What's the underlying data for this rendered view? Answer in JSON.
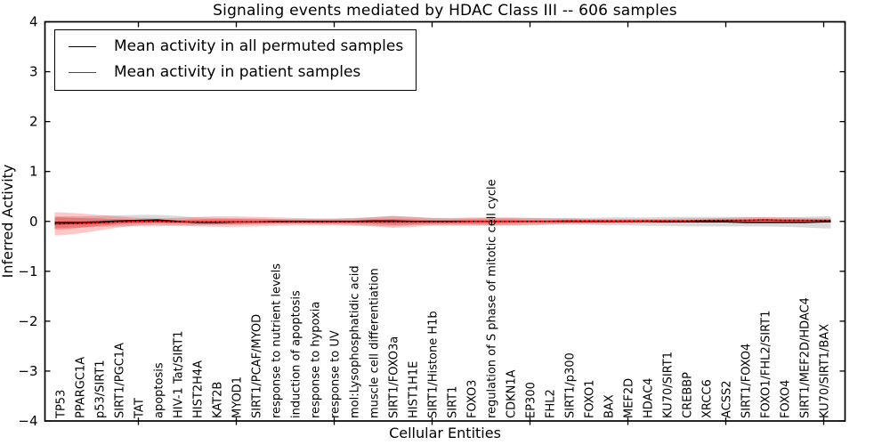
{
  "title": "Signaling events mediated by HDAC Class III -- 606 samples",
  "legend": {
    "items": [
      {
        "label": "Mean activity in all permuted samples",
        "color": "#000000"
      },
      {
        "label": "Mean activity in patient samples",
        "color": "#ff0000"
      }
    ]
  },
  "chart_data": {
    "type": "line",
    "title": "Signaling events mediated by HDAC Class III -- 606 samples",
    "xlabel": "Cellular Entities",
    "ylabel": "Inferred Activity",
    "ylim": [
      -4,
      4
    ],
    "yticks": [
      4,
      3,
      2,
      1,
      0,
      -1,
      -2,
      -3,
      -4
    ],
    "grid": false,
    "legend_position": "upper left",
    "x_marked_tick_indices": [
      4,
      9,
      14,
      19,
      24,
      29,
      34,
      39
    ],
    "categories": [
      "TP53",
      "PPARGC1A",
      "p53/SIRT1",
      "SIRT1/PGC1A",
      "TAT",
      "apoptosis",
      "HIV-1 Tat/SIRT1",
      "HIST2H4A",
      "KAT2B",
      "MYOD1",
      "SIRT1/PCAF/MYOD",
      "response to nutrient levels",
      "induction of apoptosis",
      "response to hypoxia",
      "response to UV",
      "mol:Lysophosphatidic acid",
      "muscle cell differentiation",
      "SIRT1/FOXO3a",
      "HIST1H1E",
      "SIRT1/Histone H1b",
      "SIRT1",
      "FOXO3",
      "regulation of S phase of mitotic cell cycle",
      "CDKN1A",
      "EP300",
      "FHL2",
      "SIRT1/p300",
      "FOXO1",
      "BAX",
      "MEF2D",
      "HDAC4",
      "KU70/SIRT1",
      "CREBBP",
      "XRCC6",
      "ACSS2",
      "SIRT1/FOXO4",
      "FOXO1/FHL2/SIRT1",
      "FOXO4",
      "SIRT1/MEF2D/HDAC4",
      "KU70/SIRT1/BAX"
    ],
    "series": [
      {
        "name": "Mean activity in all permuted samples",
        "color": "#000000",
        "style": "solid",
        "values": [
          -0.02,
          -0.02,
          -0.01,
          0.01,
          0.02,
          0.03,
          0.0,
          -0.02,
          -0.02,
          -0.01,
          -0.01,
          0,
          0,
          0,
          0,
          0,
          0.01,
          0.01,
          0,
          0,
          0,
          0,
          0,
          0,
          0,
          0,
          0,
          0,
          0,
          0,
          0,
          -0.01,
          -0.01,
          -0.01,
          -0.01,
          -0.02,
          -0.02,
          -0.02,
          -0.02,
          -0.01
        ]
      },
      {
        "name": "Mean activity in patient samples",
        "color": "#ff0000",
        "style": "solid-with-black-dots",
        "values": [
          -0.05,
          -0.04,
          -0.03,
          -0.01,
          0,
          0,
          -0.01,
          -0.01,
          -0.01,
          -0.01,
          -0.01,
          -0.01,
          -0.01,
          -0.01,
          -0.01,
          -0.01,
          -0.01,
          -0.01,
          -0.01,
          -0.01,
          -0.01,
          0,
          0,
          0,
          0,
          0,
          0.01,
          0.01,
          0.01,
          0.01,
          0.01,
          0.01,
          0.01,
          0.02,
          0.02,
          0.02,
          0.03,
          0.02,
          0.02,
          0.02
        ]
      }
    ],
    "bands": [
      {
        "name": "permuted-samples-range",
        "color": "#000000",
        "alpha": 0.15,
        "upper": [
          0.1,
          0.1,
          0.11,
          0.12,
          0.13,
          0.13,
          0.11,
          0.08,
          0.07,
          0.06,
          0.06,
          0.05,
          0.05,
          0.05,
          0.05,
          0.06,
          0.09,
          0.11,
          0.09,
          0.07,
          0.06,
          0.06,
          0.07,
          0.07,
          0.07,
          0.07,
          0.07,
          0.07,
          0.08,
          0.08,
          0.08,
          0.09,
          0.09,
          0.09,
          0.09,
          0.09,
          0.08,
          0.08,
          0.09,
          0.1
        ],
        "lower": [
          -0.13,
          -0.12,
          -0.11,
          -0.1,
          -0.1,
          -0.1,
          -0.09,
          -0.08,
          -0.07,
          -0.06,
          -0.06,
          -0.05,
          -0.05,
          -0.05,
          -0.06,
          -0.07,
          -0.09,
          -0.1,
          -0.08,
          -0.07,
          -0.07,
          -0.07,
          -0.08,
          -0.08,
          -0.08,
          -0.07,
          -0.07,
          -0.07,
          -0.08,
          -0.08,
          -0.09,
          -0.09,
          -0.1,
          -0.1,
          -0.1,
          -0.1,
          -0.1,
          -0.11,
          -0.12,
          -0.14
        ]
      },
      {
        "name": "patient-samples-range-outer",
        "color": "#ff0000",
        "alpha": 0.22,
        "upper": [
          0.18,
          0.16,
          0.13,
          0.1,
          0.07,
          0.06,
          0.07,
          0.09,
          0.1,
          0.1,
          0.09,
          0.08,
          0.07,
          0.06,
          0.06,
          0.07,
          0.08,
          0.11,
          0.09,
          0.07,
          0.07,
          0.08,
          0.08,
          0.08,
          0.07,
          0.06,
          0.06,
          0.05,
          0.05,
          0.05,
          0.05,
          0.05,
          0.06,
          0.06,
          0.07,
          0.08,
          0.09,
          0.08,
          0.07,
          0.06
        ],
        "lower": [
          -0.28,
          -0.24,
          -0.18,
          -0.12,
          -0.08,
          -0.07,
          -0.08,
          -0.1,
          -0.11,
          -0.11,
          -0.1,
          -0.09,
          -0.08,
          -0.08,
          -0.08,
          -0.09,
          -0.1,
          -0.13,
          -0.11,
          -0.09,
          -0.09,
          -0.09,
          -0.09,
          -0.08,
          -0.07,
          -0.06,
          -0.05,
          -0.05,
          -0.04,
          -0.04,
          -0.03,
          -0.03,
          -0.02,
          -0.02,
          -0.02,
          -0.02,
          -0.02,
          -0.02,
          -0.02,
          -0.02
        ]
      },
      {
        "name": "patient-samples-range-inner",
        "color": "#ff0000",
        "alpha": 0.3,
        "upper": [
          0.08,
          0.07,
          0.06,
          0.04,
          0.03,
          0.03,
          0.03,
          0.04,
          0.05,
          0.05,
          0.04,
          0.04,
          0.03,
          0.03,
          0.03,
          0.03,
          0.04,
          0.05,
          0.04,
          0.03,
          0.03,
          0.04,
          0.04,
          0.04,
          0.03,
          0.03,
          0.03,
          0.02,
          0.02,
          0.02,
          0.03,
          0.03,
          0.03,
          0.03,
          0.04,
          0.04,
          0.05,
          0.04,
          0.04,
          0.03
        ],
        "lower": [
          -0.16,
          -0.13,
          -0.09,
          -0.06,
          -0.04,
          -0.03,
          -0.04,
          -0.05,
          -0.06,
          -0.06,
          -0.05,
          -0.04,
          -0.04,
          -0.04,
          -0.04,
          -0.04,
          -0.05,
          -0.07,
          -0.06,
          -0.05,
          -0.05,
          -0.05,
          -0.05,
          -0.04,
          -0.03,
          -0.03,
          -0.02,
          -0.02,
          -0.02,
          -0.01,
          -0.01,
          -0.01,
          0.0,
          0.0,
          0.0,
          -0.01,
          -0.01,
          -0.01,
          -0.01,
          -0.01
        ]
      }
    ]
  }
}
